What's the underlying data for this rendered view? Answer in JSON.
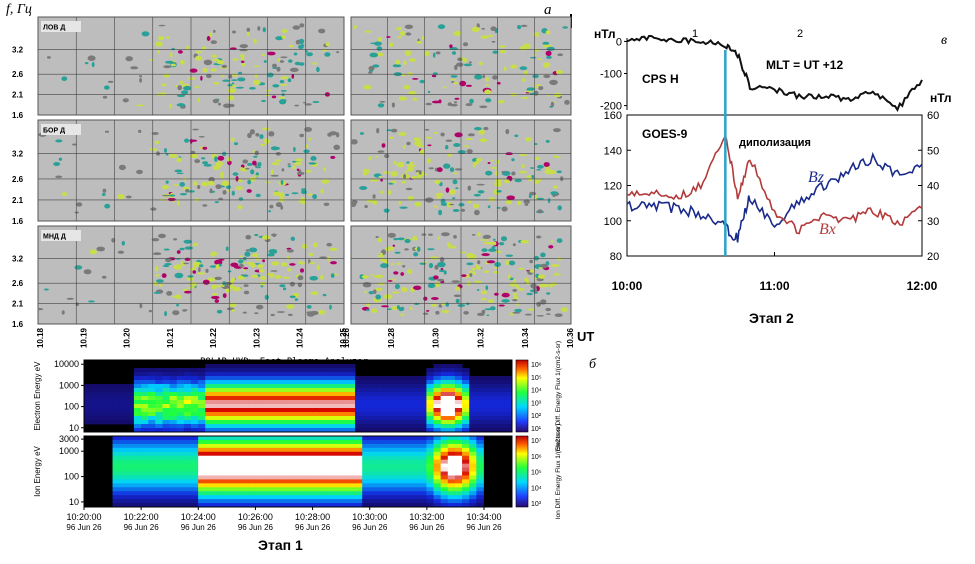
{
  "panel_a": {
    "letter": "а",
    "y_axis_label": "f, Гц",
    "y_ticks": [
      "3.2",
      "2.6",
      "2.1",
      "1.6"
    ],
    "stations": [
      "ЛОВ Д",
      "БОР Д",
      "МНД Д"
    ],
    "x_ticks_left": [
      "10.18",
      "10.19",
      "10.20",
      "10.21",
      "10.22",
      "10.23",
      "10.24",
      "10.25"
    ],
    "x_ticks_right": [
      "10.26",
      "10.28",
      "10.30",
      "10.32",
      "10.34",
      "10.36"
    ],
    "x_unit": "UT"
  },
  "panel_b": {
    "letter": "б",
    "title": "POLAR  HYD> Fast Plasma Analyzer",
    "electron_ylabel": "Electron Energy eV",
    "electron_yticks": [
      "10000",
      "1000",
      "100",
      "10"
    ],
    "ion_ylabel": "Ion Energy eV",
    "ion_yticks": [
      "3000",
      "1000",
      "100",
      "10"
    ],
    "cb_e_label": "Electron Diff. Energy Flux 1/(cm2-s-sr)",
    "cb_i_label": "Ion Diff. Energy Flux 1/(cm2-s-sr)",
    "cb_e_ticks": [
      "10⁶",
      "10⁵",
      "10⁴",
      "10³",
      "10²",
      "10¹"
    ],
    "cb_i_ticks": [
      "10⁷",
      "10⁶",
      "10⁵",
      "10⁴",
      "10³"
    ],
    "x_ticks": [
      "10:20:00",
      "10:22:00",
      "10:24:00",
      "10:26:00",
      "10:28:00",
      "10:30:00",
      "10:32:00",
      "10:34:00"
    ],
    "x_date": "96 Jun 26",
    "stage_label": "Этап 1"
  },
  "panel_c": {
    "letter": "в",
    "unit_left": "нТл",
    "unit_right": "нТл",
    "phase_labels": [
      "1",
      "2"
    ],
    "cps_label": "CPS H",
    "mlt_label": "MLT = UT +12",
    "goes_label": "GOES-9",
    "dipolarization_label": "диполизация",
    "bz_label": "Bz",
    "bx_label": "Bx",
    "stage_label": "Этап 2",
    "x_ticks": [
      "10:00",
      "11:00",
      "12:00"
    ],
    "cps_yticks": [
      "0",
      "-100",
      "-200"
    ],
    "goes_left_yticks": [
      "160",
      "140",
      "120",
      "100",
      "80"
    ],
    "goes_right_yticks": [
      "60",
      "50",
      "40",
      "30",
      "20"
    ]
  },
  "chart_data": [
    {
      "type": "heatmap",
      "panel": "а",
      "ylabel": "f, Гц",
      "xlabel": "UT",
      "stations": [
        "ЛОВ Д",
        "БОР Д",
        "МНД Д"
      ],
      "y_range": [
        1.6,
        4.0
      ],
      "x_range_left": [
        "10.18",
        "10.25"
      ],
      "x_range_right": [
        "10.25",
        "10.36"
      ],
      "colors": {
        "background": "#bdbdbd",
        "low": "#7a7a7a",
        "mid": "#2aa198",
        "high": "#c9dd4a",
        "peak": "#b0006a"
      }
    },
    {
      "type": "heatmap",
      "panel": "б",
      "title": "POLAR  HYD> Fast Plasma Analyzer",
      "series": [
        {
          "name": "Electron Energy eV",
          "y_range": [
            10,
            10000
          ]
        },
        {
          "name": "Ion Energy eV",
          "y_range": [
            10,
            3000
          ]
        }
      ],
      "x_range": [
        "10:20:00",
        "10:35:00"
      ]
    },
    {
      "type": "line",
      "panel": "в",
      "x": [
        "10:00",
        "10:10",
        "10:20",
        "10:30",
        "10:40",
        "10:45",
        "10:50",
        "11:00",
        "11:10",
        "11:20",
        "11:30",
        "11:40",
        "11:50",
        "12:00"
      ],
      "series": [
        {
          "name": "CPS H",
          "axis": "cps",
          "values": [
            5,
            10,
            5,
            0,
            -10,
            -40,
            -140,
            -150,
            -170,
            -170,
            -180,
            -160,
            -210,
            -120
          ]
        },
        {
          "name": "Bz",
          "axis": "right",
          "values": [
            34,
            34.5,
            33.5,
            32,
            28,
            25,
            37,
            29,
            35,
            40,
            44,
            48,
            43,
            46
          ]
        },
        {
          "name": "Bx",
          "axis": "left",
          "values": [
            114,
            117,
            113,
            120,
            150,
            112,
            136,
            105,
            94,
            104,
            100,
            106,
            98,
            107
          ]
        }
      ],
      "cps_ylim": [
        -220,
        20
      ],
      "left_ylim": [
        80,
        160
      ],
      "right_ylim": [
        20,
        60
      ],
      "dipolarization_time": "10:40",
      "colors": {
        "CPS H": "#111111",
        "Bz": "#1a2a8a",
        "Bx": "#b33a3a",
        "dipolarization": "#29a3c9"
      }
    }
  ]
}
